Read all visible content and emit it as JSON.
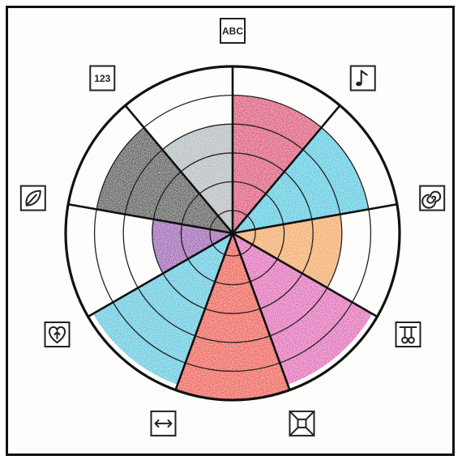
{
  "chart_data": {
    "type": "radial-bar",
    "scale": {
      "rings": 5,
      "max": 5
    },
    "sectors": [
      {
        "icon": "abc-text-icon",
        "icon_label": "ABC",
        "value": 4,
        "color": "#d21f4e"
      },
      {
        "icon": "music-note-icon",
        "icon_label": "",
        "value": 4,
        "color": "#22b7d8"
      },
      {
        "icon": "spiral-icon",
        "icon_label": "",
        "value": 3,
        "color": "#ef8c34"
      },
      {
        "icon": "pendulum-balls-icon",
        "icon_label": "",
        "value": 4.8,
        "color": "#d63aa0"
      },
      {
        "icon": "cube-perspective-icon",
        "icon_label": "",
        "value": 5,
        "color": "#e9291e"
      },
      {
        "icon": "double-arrow-icon",
        "icon_label": "",
        "value": 4.8,
        "color": "#2eb6d8"
      },
      {
        "icon": "heart-arrow-icon",
        "icon_label": "",
        "value": 2,
        "color": "#7b2e9a"
      },
      {
        "icon": "leaf-icon",
        "icon_label": "",
        "value": 4,
        "color": "#222222"
      },
      {
        "icon": "numbers-123-icon",
        "icon_label": "123",
        "value": 3,
        "color": "#9aa3a8"
      }
    ]
  }
}
